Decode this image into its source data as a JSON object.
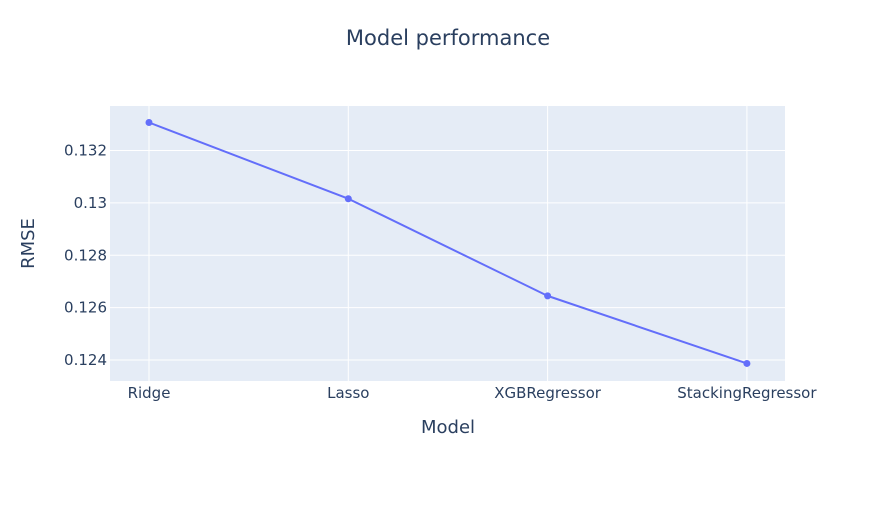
{
  "chart_data": {
    "type": "line",
    "title": "Model performance",
    "xlabel": "Model",
    "ylabel": "RMSE",
    "categories": [
      "Ridge",
      "Lasso",
      "XGBRegressor",
      "StackingRegressor"
    ],
    "series": [
      {
        "values": [
          0.13307,
          0.13016,
          0.12645,
          0.12387
        ]
      }
    ],
    "yticks": [
      0.124,
      0.126,
      0.128,
      0.13,
      0.132
    ],
    "ytick_labels": [
      "0.124",
      "0.126",
      "0.128",
      "0.13",
      "0.132"
    ],
    "ylim": [
      0.1232,
      0.1337
    ],
    "grid": true,
    "colors": {
      "plot_bg": "#E5ECF6",
      "grid": "#ffffff",
      "line": "#636EFA",
      "text": "#2a3f5f"
    }
  }
}
